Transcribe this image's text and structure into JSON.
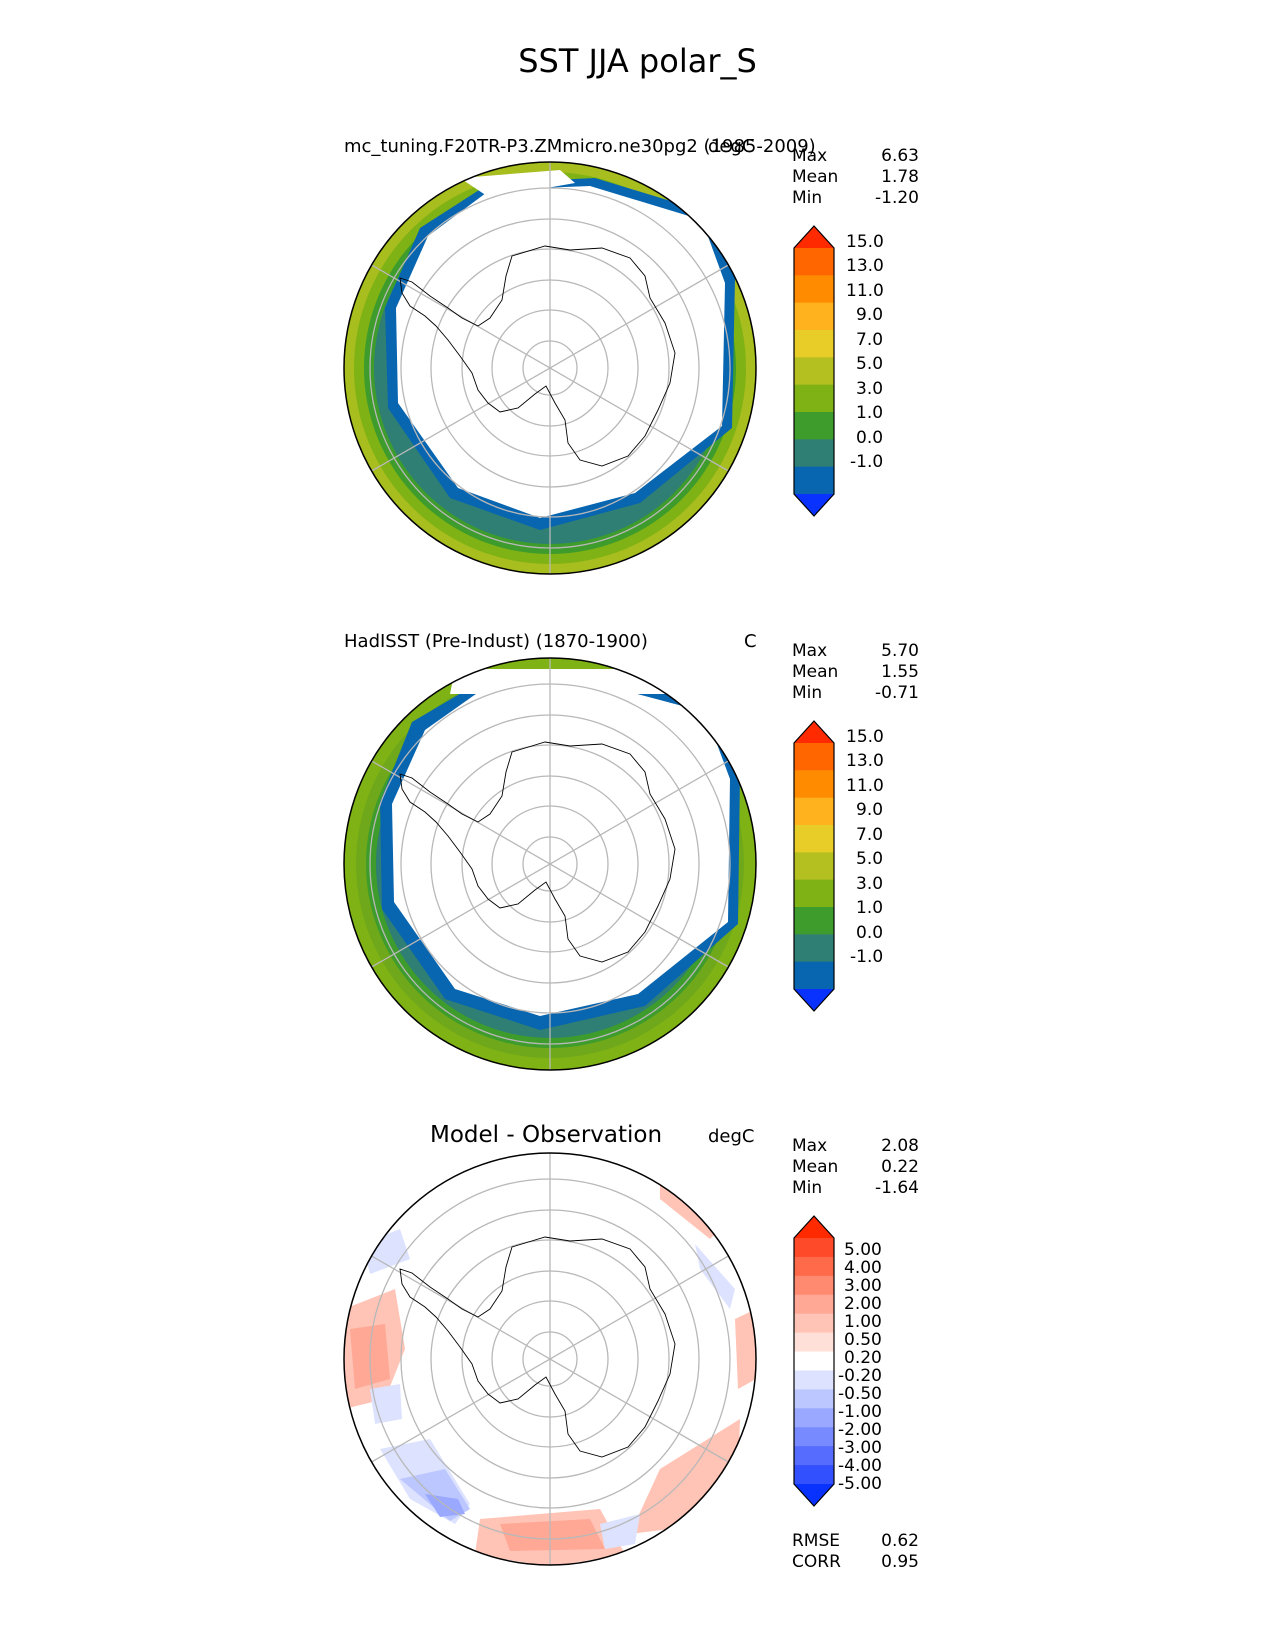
{
  "figure_title": "SST JJA polar_S",
  "panels": [
    {
      "id": "model",
      "left_title": "mc_tuning.F20TR-P3.ZMmicro.ne30pg2 (1985-2009)",
      "right_title": "degC",
      "stats": [
        {
          "label": "Max",
          "value": "6.63"
        },
        {
          "label": "Mean",
          "value": "1.78"
        },
        {
          "label": "Min",
          "value": "-1.20"
        }
      ],
      "colorbar": {
        "ticks": [
          "15.0",
          "13.0",
          "11.0",
          "9.0",
          "7.0",
          "5.0",
          "3.0",
          "1.0",
          "0.0",
          "-1.0"
        ],
        "colors": [
          "#ff2a00",
          "#ff6600",
          "#ff8c00",
          "#ffb21e",
          "#e8cc28",
          "#b4c020",
          "#7fb214",
          "#3e9c2c",
          "#2f7f74",
          "#0865b0",
          "#0a32ff"
        ]
      }
    },
    {
      "id": "obs",
      "left_title": "HadISST (Pre-Indust) (1870-1900)",
      "right_title": "C",
      "stats": [
        {
          "label": "Max",
          "value": "5.70"
        },
        {
          "label": "Mean",
          "value": "1.55"
        },
        {
          "label": "Min",
          "value": "-0.71"
        }
      ],
      "colorbar": {
        "ticks": [
          "15.0",
          "13.0",
          "11.0",
          "9.0",
          "7.0",
          "5.0",
          "3.0",
          "1.0",
          "0.0",
          "-1.0"
        ],
        "colors": [
          "#ff2a00",
          "#ff6600",
          "#ff8c00",
          "#ffb21e",
          "#e8cc28",
          "#b4c020",
          "#7fb214",
          "#3e9c2c",
          "#2f7f74",
          "#0865b0",
          "#0a32ff"
        ]
      }
    },
    {
      "id": "diff",
      "center_title": "Model - Observation",
      "right_title": "degC",
      "stats": [
        {
          "label": "Max",
          "value": "2.08"
        },
        {
          "label": "Mean",
          "value": "0.22"
        },
        {
          "label": "Min",
          "value": "-1.64"
        }
      ],
      "colorbar": {
        "ticks": [
          "5.00",
          "4.00",
          "3.00",
          "2.00",
          "1.00",
          "0.50",
          "0.20",
          "-0.20",
          "-0.50",
          "-1.00",
          "-2.00",
          "-3.00",
          "-4.00",
          "-5.00"
        ],
        "colors": [
          "#ff2a00",
          "#ff4a2a",
          "#ff6a4a",
          "#ff8a70",
          "#ffa896",
          "#ffc4b6",
          "#ffe0d8",
          "#ffffff",
          "#dde3ff",
          "#bcc6ff",
          "#9aa8ff",
          "#788aff",
          "#566cff",
          "#3350ff",
          "#0a32ff"
        ]
      },
      "metrics": [
        {
          "label": "RMSE",
          "value": "0.62"
        },
        {
          "label": "CORR",
          "value": "0.95"
        }
      ]
    }
  ]
}
